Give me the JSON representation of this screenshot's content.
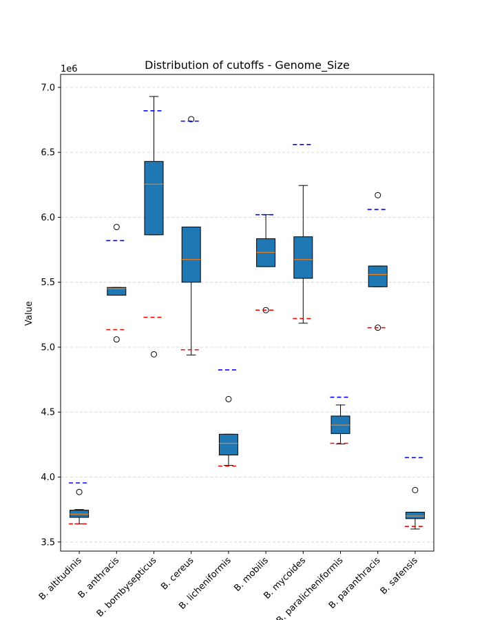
{
  "chart_data": {
    "type": "box",
    "title": "Distribution of cutoffs - Genome_Size",
    "xlabel": "",
    "ylabel": "Value",
    "y_multiplier_label": "1e6",
    "ylim": [
      3.43,
      7.1
    ],
    "yticks": [
      3.5,
      4.0,
      4.5,
      5.0,
      5.5,
      6.0,
      6.5,
      7.0
    ],
    "ytick_labels": [
      "3.5",
      "4.0",
      "4.5",
      "5.0",
      "5.5",
      "6.0",
      "6.5",
      "7.0"
    ],
    "grid": "horizontal-dashed",
    "box_color": "#1f77b4",
    "median_color": "#ff7f0e",
    "upper_cutoff_color": "#0000ff",
    "lower_cutoff_color": "#ff0000",
    "categories": [
      "B. altitudinis",
      "B. anthracis",
      "B. bombysepticus",
      "B. cereus",
      "B. licheniformis",
      "B. mobilis",
      "B. mycoides",
      "B. paralicheniformis",
      "B. paranthracis",
      "B. safensis"
    ],
    "boxes": [
      {
        "whisker_low": 3.64,
        "q1": 3.69,
        "median": 3.715,
        "q3": 3.745,
        "whisker_high": 3.75,
        "outliers": [
          3.885
        ],
        "upper_cutoff": 3.955,
        "lower_cutoff": 3.64
      },
      {
        "whisker_low": 5.4,
        "q1": 5.4,
        "median": 5.45,
        "q3": 5.46,
        "whisker_high": 5.46,
        "outliers": [
          5.925,
          5.06
        ],
        "upper_cutoff": 5.82,
        "lower_cutoff": 5.135
      },
      {
        "whisker_low": 5.865,
        "q1": 5.865,
        "median": 6.255,
        "q3": 6.43,
        "whisker_high": 6.93,
        "outliers": [
          4.945
        ],
        "upper_cutoff": 6.82,
        "lower_cutoff": 5.23
      },
      {
        "whisker_low": 4.94,
        "q1": 5.5,
        "median": 5.675,
        "q3": 5.925,
        "whisker_high": 5.925,
        "outliers": [
          6.755
        ],
        "upper_cutoff": 6.74,
        "lower_cutoff": 4.98
      },
      {
        "whisker_low": 4.09,
        "q1": 4.17,
        "median": 4.26,
        "q3": 4.33,
        "whisker_high": 4.33,
        "outliers": [
          4.6
        ],
        "upper_cutoff": 4.825,
        "lower_cutoff": 4.085
      },
      {
        "whisker_low": 5.62,
        "q1": 5.62,
        "median": 5.73,
        "q3": 5.835,
        "whisker_high": 6.02,
        "outliers": [
          5.285
        ],
        "upper_cutoff": 6.02,
        "lower_cutoff": 5.285
      },
      {
        "whisker_low": 5.185,
        "q1": 5.53,
        "median": 5.675,
        "q3": 5.85,
        "whisker_high": 6.245,
        "outliers": [],
        "upper_cutoff": 6.56,
        "lower_cutoff": 5.22
      },
      {
        "whisker_low": 4.255,
        "q1": 4.335,
        "median": 4.4,
        "q3": 4.47,
        "whisker_high": 4.555,
        "outliers": [],
        "upper_cutoff": 4.615,
        "lower_cutoff": 4.26
      },
      {
        "whisker_low": 5.465,
        "q1": 5.465,
        "median": 5.56,
        "q3": 5.625,
        "whisker_high": 5.625,
        "outliers": [
          6.17,
          5.15
        ],
        "upper_cutoff": 6.06,
        "lower_cutoff": 5.15
      },
      {
        "whisker_low": 3.6,
        "q1": 3.68,
        "median": 3.7,
        "q3": 3.73,
        "whisker_high": 3.73,
        "outliers": [
          3.9
        ],
        "upper_cutoff": 4.15,
        "lower_cutoff": 3.62
      }
    ]
  }
}
